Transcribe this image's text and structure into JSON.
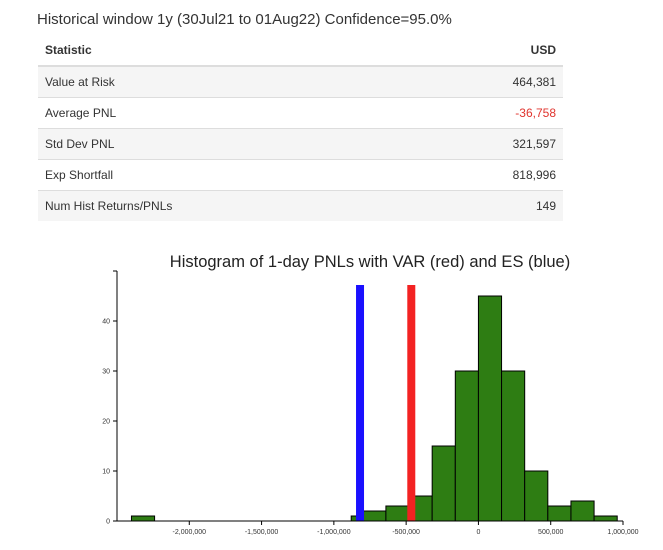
{
  "header": {
    "title": "Historical window 1y (30Jul21 to 01Aug22) Confidence=95.0%"
  },
  "table": {
    "headers": [
      "Statistic",
      "USD"
    ],
    "rows": [
      {
        "label": "Value at Risk",
        "value": "464,381",
        "negative": false
      },
      {
        "label": "Average PNL",
        "value": "-36,758",
        "negative": true
      },
      {
        "label": "Std Dev PNL",
        "value": "321,597",
        "negative": false
      },
      {
        "label": "Exp Shortfall",
        "value": "818,996",
        "negative": false
      },
      {
        "label": "Num Hist Returns/PNLs",
        "value": "149",
        "negative": false
      }
    ]
  },
  "chart_data": {
    "type": "bar",
    "title": "Histogram of 1-day PNLs with VAR (red) and ES (blue)",
    "xlabel": "",
    "ylabel": "",
    "xlim": [
      -2500000,
      1000000
    ],
    "ylim": [
      0,
      47
    ],
    "x_ticks": [
      -2000000,
      -1500000,
      -1000000,
      -500000,
      0,
      500000,
      1000000
    ],
    "x_tick_labels": [
      "-2,000,000",
      "-1,500,000",
      "-1,000,000",
      "-500,000",
      "0",
      "500,000",
      "1,000,000"
    ],
    "y_ticks": [
      0,
      10,
      20,
      30,
      40
    ],
    "y_tick_labels": [
      "0",
      "10",
      "20",
      "30",
      "40"
    ],
    "bins": [
      {
        "x0": -2400000,
        "x1": -2240000,
        "count": 1
      },
      {
        "x0": -880000,
        "x1": -800000,
        "count": 1
      },
      {
        "x0": -800000,
        "x1": -640000,
        "count": 2
      },
      {
        "x0": -640000,
        "x1": -480000,
        "count": 3
      },
      {
        "x0": -480000,
        "x1": -320000,
        "count": 5
      },
      {
        "x0": -320000,
        "x1": -160000,
        "count": 15
      },
      {
        "x0": -160000,
        "x1": 0,
        "count": 30
      },
      {
        "x0": 0,
        "x1": 160000,
        "count": 45
      },
      {
        "x0": 160000,
        "x1": 320000,
        "count": 30
      },
      {
        "x0": 320000,
        "x1": 480000,
        "count": 10
      },
      {
        "x0": 480000,
        "x1": 640000,
        "count": 3
      },
      {
        "x0": 640000,
        "x1": 800000,
        "count": 4
      },
      {
        "x0": 800000,
        "x1": 960000,
        "count": 1
      }
    ],
    "bar_color": "#2e7d13",
    "vlines": [
      {
        "name": "ES",
        "x": -818996,
        "color": "#1a10ff"
      },
      {
        "name": "VAR",
        "x": -464381,
        "color": "#f32222"
      }
    ]
  }
}
